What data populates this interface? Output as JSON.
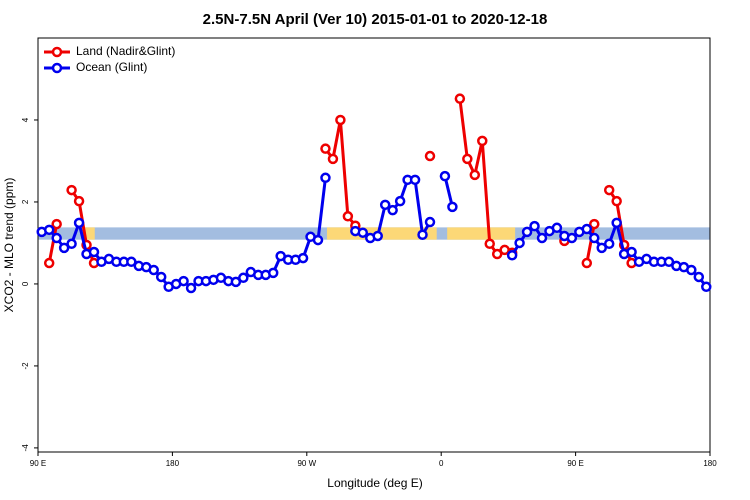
{
  "chart_data": {
    "type": "line",
    "title": "2.5N-7.5N April (Ver 10)   2015-01-01 to 2020-12-18",
    "x_label": "Longitude (deg E)",
    "y_label": "XCO2 - MLO trend (ppm)",
    "xlim": [
      90,
      540
    ],
    "ylim": [
      -4.1,
      6.0
    ],
    "xticks": [
      {
        "value": 90,
        "label": "90 E"
      },
      180,
      {
        "value": 270,
        "label": "90 W"
      },
      {
        "value": 360,
        "label": "0"
      },
      {
        "value": 450,
        "label": "90 E"
      },
      {
        "value": 540,
        "label": "180"
      }
    ],
    "yticks": [
      -4,
      -2,
      0,
      2,
      4
    ],
    "legend": "top-left",
    "reference_band": {
      "ylim": [
        1.08,
        1.38
      ],
      "color": "#a3bde0",
      "land_color": "#fcd877",
      "land_ranges": [
        [
          121.5,
          128
        ],
        [
          283.5,
          357
        ],
        [
          364,
          409.5
        ]
      ]
    },
    "x": [
      92.5,
      97.5,
      102.5,
      107.5,
      112.5,
      117.5,
      122.5,
      127.5,
      132.5,
      137.5,
      142.5,
      147.5,
      152.5,
      157.5,
      162.5,
      167.5,
      172.5,
      177.5,
      182.5,
      187.5,
      192.5,
      197.5,
      202.5,
      207.5,
      212.5,
      217.5,
      222.5,
      227.5,
      232.5,
      237.5,
      242.5,
      247.5,
      252.5,
      257.5,
      262.5,
      267.5,
      272.5,
      277.5,
      282.5,
      287.5,
      292.5,
      297.5,
      302.5,
      307.5,
      312.5,
      317.5,
      322.5,
      327.5,
      332.5,
      337.5,
      342.5,
      347.5,
      352.5,
      357.5,
      362.5,
      367.5,
      372.5,
      377.5,
      382.5,
      387.5,
      392.5,
      397.5,
      402.5,
      407.5,
      412.5,
      417.5,
      422.5,
      427.5,
      432.5,
      437.5,
      442.5,
      447.5,
      452.5,
      457.5,
      462.5,
      467.5,
      472.5,
      477.5,
      482.5,
      487.5,
      492.5,
      497.5,
      502.5,
      507.5,
      512.5,
      517.5,
      522.5,
      527.5,
      532.5,
      537.5
    ],
    "series": [
      {
        "name": "Land (Nadir&Glint)",
        "color": "#ee0000",
        "values": [
          null,
          0.51,
          1.46,
          null,
          2.29,
          2.02,
          0.95,
          0.51,
          null,
          null,
          null,
          null,
          null,
          null,
          null,
          null,
          null,
          null,
          null,
          null,
          null,
          null,
          null,
          null,
          null,
          null,
          null,
          null,
          null,
          null,
          null,
          null,
          null,
          null,
          null,
          null,
          null,
          null,
          3.3,
          3.05,
          4.0,
          1.65,
          1.42,
          null,
          null,
          null,
          null,
          null,
          null,
          null,
          null,
          null,
          3.12,
          null,
          null,
          null,
          4.52,
          3.05,
          2.66,
          3.49,
          0.98,
          0.73,
          0.83,
          0.76,
          null,
          null,
          null,
          null,
          null,
          null,
          1.05,
          null,
          null,
          0.51,
          1.46,
          null,
          2.29,
          2.02,
          0.95,
          0.51,
          null,
          null,
          null,
          null,
          null,
          null,
          null,
          null,
          null,
          null
        ]
      },
      {
        "name": "Ocean (Glint)",
        "color": "#0000ee",
        "values": [
          1.27,
          1.32,
          1.12,
          0.88,
          0.98,
          1.49,
          0.73,
          0.78,
          0.54,
          0.61,
          0.54,
          0.54,
          0.54,
          0.44,
          0.41,
          0.34,
          0.17,
          -0.07,
          0,
          0.07,
          -0.1,
          0.07,
          0.07,
          0.1,
          0.15,
          0.07,
          0.05,
          0.15,
          0.29,
          0.22,
          0.22,
          0.27,
          0.68,
          0.59,
          0.59,
          0.63,
          1.15,
          1.07,
          2.59,
          null,
          null,
          null,
          1.29,
          1.25,
          1.12,
          1.17,
          1.93,
          1.8,
          2.02,
          2.54,
          2.54,
          1.2,
          1.51,
          null,
          2.63,
          1.88,
          null,
          null,
          null,
          null,
          null,
          null,
          null,
          0.7,
          1.0,
          1.27,
          1.41,
          1.12,
          1.29,
          1.37,
          1.17,
          1.12,
          1.27,
          1.34,
          1.12,
          0.88,
          0.98,
          1.49,
          0.73,
          0.78,
          0.54,
          0.61,
          0.54,
          0.54,
          0.54,
          0.44,
          0.41,
          0.34,
          0.17,
          -0.07
        ]
      }
    ]
  }
}
